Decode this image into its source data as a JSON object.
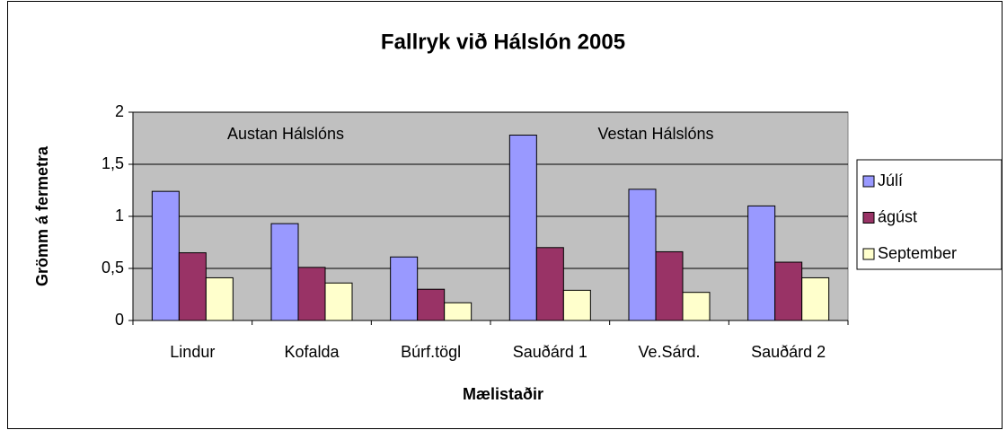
{
  "chart_data": {
    "type": "bar",
    "title": "Fallryk við Hálslón 2005",
    "x_label": "Mælistaðir",
    "y_label": "Grömm á fermetra",
    "annotations": [
      "Austan Hálslóns",
      "Vestan Hálslóns"
    ],
    "categories": [
      "Lindur",
      "Kofalda",
      "Búrf.tögl",
      "Sauðárd 1",
      "Ve.Sárd.",
      "Sauðárd 2"
    ],
    "series": [
      {
        "name": "Júlí",
        "color": "#9999ff",
        "values": [
          1.24,
          0.93,
          0.61,
          1.78,
          1.26,
          1.1
        ]
      },
      {
        "name": "ágúst",
        "color": "#993366",
        "values": [
          0.65,
          0.51,
          0.3,
          0.7,
          0.66,
          0.56
        ]
      },
      {
        "name": "September",
        "color": "#ffffcc",
        "values": [
          0.41,
          0.36,
          0.17,
          0.29,
          0.27,
          0.41
        ]
      }
    ],
    "ylim": [
      0,
      2
    ],
    "yticks": [
      0,
      {
        "value": 0.5,
        "label": "0,5"
      },
      1,
      {
        "value": 1.5,
        "label": "1,5"
      },
      2
    ],
    "grid": true,
    "plot_background": "#c0c0c0",
    "legend": "right"
  }
}
